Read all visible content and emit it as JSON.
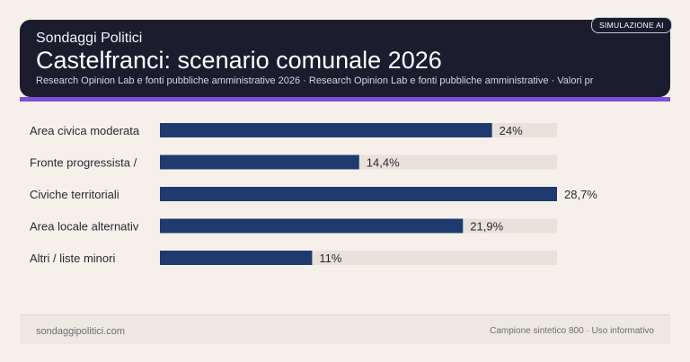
{
  "header": {
    "brand": "Sondaggi Politici",
    "title": "Castelfranci: scenario comunale 2026",
    "subtitle": "Research Opinion Lab e fonti pubbliche amministrative 2026 · Research Opinion Lab e fonti pubbliche amministrative · Valori pr",
    "badge": "SIMULAZIONE AI"
  },
  "colors": {
    "bar": "#1f3a6e",
    "track": "#e8e2db",
    "header_bg": "#1b1c2e",
    "accent": "#7b4fd9"
  },
  "chart_data": {
    "type": "bar",
    "orientation": "horizontal",
    "categories": [
      "Area civica moderata",
      "Fronte progressista /",
      "Civiche territoriali",
      "Area locale alternativ",
      "Altri / liste minori"
    ],
    "values": [
      24,
      14.4,
      28.7,
      21.9,
      11
    ],
    "value_labels": [
      "24%",
      "14,4%",
      "28,7%",
      "21,9%",
      "11%"
    ],
    "xlim": [
      0,
      28.7
    ],
    "grid": false
  },
  "footer": {
    "left": "sondaggipolitici.com",
    "right": "Campione sintetico 800 · Uso informativo"
  }
}
